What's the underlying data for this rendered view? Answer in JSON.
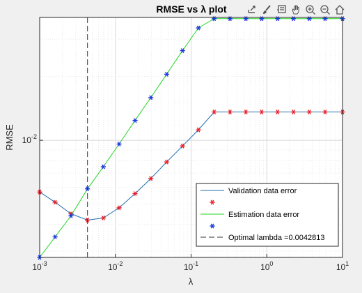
{
  "toolbar": {
    "icons": [
      "export-icon",
      "brush-icon",
      "datatip-icon",
      "pan-hand-icon",
      "zoom-in-icon",
      "zoom-out-icon",
      "home-icon"
    ]
  },
  "chart_data": {
    "type": "line",
    "title": "RMSE vs λ plot",
    "xlabel": "λ",
    "ylabel": "RMSE",
    "xscale": "log",
    "yscale": "log",
    "xlim": [
      0.001,
      10
    ],
    "ylim": [
      0.0028,
      0.038
    ],
    "x_tick_labels": [
      "10^-3",
      "10^-2",
      "10^-1",
      "10^0",
      "10^1"
    ],
    "y_tick_labels": [
      "10^-2"
    ],
    "grid": true,
    "minor_grid": true,
    "legend_position": "bottom-right",
    "optimal_lambda": 0.0042813,
    "series": [
      {
        "name": "Validation data error",
        "line_color": "#1f6fb4",
        "marker_color": "#e8202a",
        "marker": "*",
        "x": [
          0.001,
          0.0016,
          0.00259,
          0.0042813,
          0.00693,
          0.0112,
          0.0182,
          0.0294,
          0.0476,
          0.0771,
          0.125,
          0.202,
          0.327,
          0.53,
          0.857,
          1.39,
          2.25,
          3.64,
          5.89,
          10
        ],
        "y": [
          0.0057,
          0.0051,
          0.0045,
          0.0042,
          0.0043,
          0.0048,
          0.0056,
          0.0066,
          0.0079,
          0.0094,
          0.0112,
          0.0136,
          0.0136,
          0.0136,
          0.0136,
          0.0136,
          0.0136,
          0.0136,
          0.0136,
          0.0136
        ]
      },
      {
        "name": "Estimation data error",
        "line_color": "#22d622",
        "marker_color": "#1a3ad8",
        "marker": "*",
        "x": [
          0.001,
          0.0016,
          0.00259,
          0.0042813,
          0.00693,
          0.0112,
          0.0182,
          0.0294,
          0.0476,
          0.0771,
          0.125,
          0.202,
          0.327,
          0.53,
          0.857,
          1.39,
          2.25,
          3.64,
          5.89,
          10
        ],
        "y": [
          0.0028,
          0.0035,
          0.0044,
          0.0059,
          0.0075,
          0.0096,
          0.0124,
          0.0159,
          0.0205,
          0.0265,
          0.0339,
          0.0375,
          0.0375,
          0.0375,
          0.0375,
          0.0375,
          0.0375,
          0.0375,
          0.0375,
          0.0375
        ]
      }
    ],
    "legend": {
      "entries": [
        "Validation data error",
        "*",
        "Estimation data error",
        "*",
        "Optimal lambda =0.0042813"
      ]
    }
  }
}
